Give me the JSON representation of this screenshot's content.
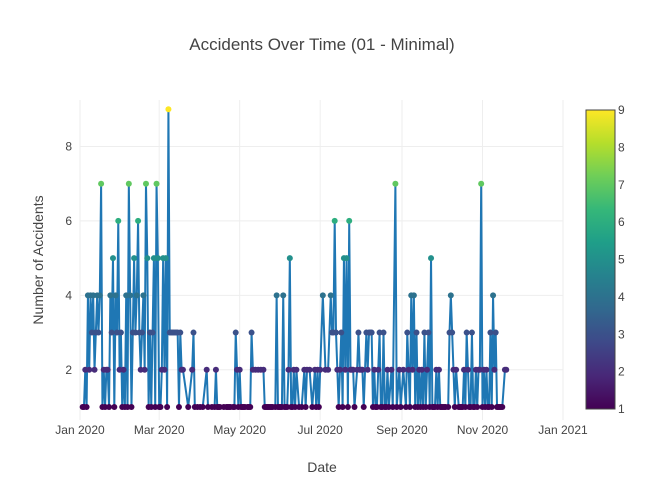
{
  "chart_data": {
    "type": "line",
    "mode": "lines+markers",
    "title": "Accidents Over Time (01 - Minimal)",
    "xlabel": "Date",
    "ylabel": "Number of Accidents",
    "x_start": "2020-01-01",
    "x_end": "2021-01-01",
    "xlim": [
      0,
      366
    ],
    "ylim": [
      0.65,
      9.25
    ],
    "x_ticks": [
      {
        "day": 0,
        "label": "Jan 2020"
      },
      {
        "day": 60,
        "label": "Mar 2020"
      },
      {
        "day": 121,
        "label": "May 2020"
      },
      {
        "day": 182,
        "label": "Jul 2020"
      },
      {
        "day": 244,
        "label": "Sep 2020"
      },
      {
        "day": 305,
        "label": "Nov 2020"
      },
      {
        "day": 366,
        "label": "Jan 2021"
      }
    ],
    "y_ticks": [
      2,
      4,
      6,
      8
    ],
    "grid": true,
    "line_color": "#1f77b4",
    "colorscale": "Viridis",
    "colorbar": {
      "min": 1,
      "max": 9,
      "ticks": [
        1,
        2,
        3,
        4,
        5,
        6,
        7,
        8,
        9
      ]
    },
    "series": [
      {
        "name": "Accidents",
        "points": [
          [
            2,
            1
          ],
          [
            3,
            1
          ],
          [
            4,
            2
          ],
          [
            5,
            1
          ],
          [
            6,
            4
          ],
          [
            7,
            2
          ],
          [
            8,
            4
          ],
          [
            9,
            3
          ],
          [
            10,
            4
          ],
          [
            11,
            2
          ],
          [
            12,
            3
          ],
          [
            13,
            4
          ],
          [
            14,
            3
          ],
          [
            15,
            4
          ],
          [
            16,
            7
          ],
          [
            17,
            1
          ],
          [
            18,
            2
          ],
          [
            19,
            1
          ],
          [
            20,
            2
          ],
          [
            21,
            2
          ],
          [
            22,
            1
          ],
          [
            23,
            4
          ],
          [
            24,
            3
          ],
          [
            25,
            5
          ],
          [
            26,
            1
          ],
          [
            27,
            4
          ],
          [
            28,
            3
          ],
          [
            29,
            6
          ],
          [
            30,
            2
          ],
          [
            31,
            3
          ],
          [
            32,
            1
          ],
          [
            33,
            2
          ],
          [
            34,
            1
          ],
          [
            35,
            4
          ],
          [
            36,
            1
          ],
          [
            37,
            7
          ],
          [
            38,
            4
          ],
          [
            39,
            1
          ],
          [
            40,
            3
          ],
          [
            41,
            5
          ],
          [
            42,
            3
          ],
          [
            43,
            4
          ],
          [
            44,
            6
          ],
          [
            45,
            3
          ],
          [
            46,
            2
          ],
          [
            47,
            3
          ],
          [
            48,
            4
          ],
          [
            49,
            2
          ],
          [
            50,
            7
          ],
          [
            51,
            5
          ],
          [
            52,
            1
          ],
          [
            53,
            3
          ],
          [
            54,
            1
          ],
          [
            55,
            3
          ],
          [
            56,
            5
          ],
          [
            57,
            1
          ],
          [
            58,
            7
          ],
          [
            59,
            5
          ],
          [
            60,
            1
          ],
          [
            61,
            1
          ],
          [
            62,
            2
          ],
          [
            63,
            5
          ],
          [
            64,
            2
          ],
          [
            65,
            5
          ],
          [
            66,
            1
          ],
          [
            67,
            9
          ],
          [
            68,
            3
          ],
          [
            69,
            3
          ],
          [
            70,
            3
          ],
          [
            71,
            3
          ],
          [
            72,
            3
          ],
          [
            73,
            3
          ],
          [
            74,
            3
          ],
          [
            75,
            1
          ],
          [
            76,
            3
          ],
          [
            77,
            2
          ],
          [
            78,
            2
          ],
          [
            82,
            1
          ],
          [
            85,
            2
          ],
          [
            86,
            3
          ],
          [
            87,
            1
          ],
          [
            89,
            1
          ],
          [
            91,
            1
          ],
          [
            93,
            1
          ],
          [
            96,
            2
          ],
          [
            97,
            1
          ],
          [
            100,
            1
          ],
          [
            102,
            1
          ],
          [
            103,
            2
          ],
          [
            104,
            1
          ],
          [
            105,
            1
          ],
          [
            106,
            1
          ],
          [
            109,
            1
          ],
          [
            111,
            1
          ],
          [
            112,
            1
          ],
          [
            113,
            1
          ],
          [
            114,
            1
          ],
          [
            116,
            1
          ],
          [
            117,
            1
          ],
          [
            118,
            3
          ],
          [
            119,
            2
          ],
          [
            120,
            1
          ],
          [
            121,
            2
          ],
          [
            122,
            1
          ],
          [
            123,
            1
          ],
          [
            124,
            1
          ],
          [
            125,
            1
          ],
          [
            127,
            1
          ],
          [
            128,
            1
          ],
          [
            129,
            1
          ],
          [
            130,
            3
          ],
          [
            131,
            2
          ],
          [
            133,
            2
          ],
          [
            135,
            2
          ],
          [
            137,
            2
          ],
          [
            139,
            2
          ],
          [
            140,
            1
          ],
          [
            141,
            1
          ],
          [
            142,
            1
          ],
          [
            143,
            1
          ],
          [
            144,
            1
          ],
          [
            145,
            1
          ],
          [
            146,
            1
          ],
          [
            148,
            1
          ],
          [
            149,
            4
          ],
          [
            150,
            1
          ],
          [
            151,
            1
          ],
          [
            152,
            1
          ],
          [
            153,
            1
          ],
          [
            154,
            4
          ],
          [
            155,
            1
          ],
          [
            156,
            1
          ],
          [
            157,
            1
          ],
          [
            158,
            2
          ],
          [
            159,
            5
          ],
          [
            160,
            1
          ],
          [
            161,
            1
          ],
          [
            162,
            2
          ],
          [
            163,
            1
          ],
          [
            164,
            2
          ],
          [
            166,
            1
          ],
          [
            168,
            1
          ],
          [
            170,
            2
          ],
          [
            171,
            1
          ],
          [
            172,
            2
          ],
          [
            174,
            2
          ],
          [
            176,
            1
          ],
          [
            178,
            2
          ],
          [
            179,
            1
          ],
          [
            180,
            2
          ],
          [
            181,
            1
          ],
          [
            182,
            2
          ],
          [
            184,
            4
          ],
          [
            186,
            2
          ],
          [
            188,
            2
          ],
          [
            190,
            4
          ],
          [
            191,
            3
          ],
          [
            192,
            3
          ],
          [
            193,
            6
          ],
          [
            194,
            3
          ],
          [
            195,
            2
          ],
          [
            196,
            1
          ],
          [
            197,
            2
          ],
          [
            198,
            3
          ],
          [
            199,
            1
          ],
          [
            200,
            5
          ],
          [
            201,
            2
          ],
          [
            202,
            5
          ],
          [
            203,
            1
          ],
          [
            204,
            6
          ],
          [
            205,
            2
          ],
          [
            206,
            2
          ],
          [
            207,
            2
          ],
          [
            208,
            1
          ],
          [
            210,
            2
          ],
          [
            211,
            3
          ],
          [
            212,
            2
          ],
          [
            213,
            2
          ],
          [
            214,
            2
          ],
          [
            215,
            1
          ],
          [
            217,
            3
          ],
          [
            218,
            2
          ],
          [
            219,
            3
          ],
          [
            220,
            3
          ],
          [
            221,
            3
          ],
          [
            222,
            1
          ],
          [
            223,
            2
          ],
          [
            224,
            1
          ],
          [
            225,
            1
          ],
          [
            226,
            2
          ],
          [
            227,
            3
          ],
          [
            228,
            1
          ],
          [
            229,
            1
          ],
          [
            230,
            3
          ],
          [
            231,
            1
          ],
          [
            232,
            1
          ],
          [
            233,
            2
          ],
          [
            234,
            1
          ],
          [
            236,
            2
          ],
          [
            237,
            1
          ],
          [
            239,
            7
          ],
          [
            240,
            1
          ],
          [
            242,
            2
          ],
          [
            243,
            1
          ],
          [
            245,
            2
          ],
          [
            247,
            1
          ],
          [
            248,
            3
          ],
          [
            249,
            2
          ],
          [
            250,
            1
          ],
          [
            251,
            4
          ],
          [
            252,
            2
          ],
          [
            253,
            4
          ],
          [
            254,
            1
          ],
          [
            255,
            3
          ],
          [
            256,
            1
          ],
          [
            257,
            2
          ],
          [
            258,
            1
          ],
          [
            259,
            2
          ],
          [
            260,
            1
          ],
          [
            261,
            3
          ],
          [
            262,
            1
          ],
          [
            263,
            2
          ],
          [
            264,
            3
          ],
          [
            265,
            1
          ],
          [
            266,
            5
          ],
          [
            267,
            1
          ],
          [
            268,
            1
          ],
          [
            269,
            1
          ],
          [
            270,
            2
          ],
          [
            271,
            1
          ],
          [
            272,
            2
          ],
          [
            273,
            1
          ],
          [
            274,
            1
          ],
          [
            275,
            1
          ],
          [
            276,
            1
          ],
          [
            277,
            1
          ],
          [
            279,
            1
          ],
          [
            280,
            3
          ],
          [
            281,
            4
          ],
          [
            282,
            3
          ],
          [
            283,
            2
          ],
          [
            284,
            1
          ],
          [
            285,
            2
          ],
          [
            287,
            1
          ],
          [
            288,
            1
          ],
          [
            289,
            1
          ],
          [
            290,
            1
          ],
          [
            291,
            2
          ],
          [
            292,
            1
          ],
          [
            293,
            3
          ],
          [
            294,
            2
          ],
          [
            295,
            1
          ],
          [
            296,
            1
          ],
          [
            297,
            3
          ],
          [
            298,
            1
          ],
          [
            299,
            1
          ],
          [
            300,
            2
          ],
          [
            301,
            1
          ],
          [
            302,
            2
          ],
          [
            303,
            2
          ],
          [
            304,
            7
          ],
          [
            305,
            1
          ],
          [
            306,
            2
          ],
          [
            307,
            1
          ],
          [
            308,
            2
          ],
          [
            309,
            1
          ],
          [
            310,
            1
          ],
          [
            311,
            3
          ],
          [
            312,
            1
          ],
          [
            313,
            4
          ],
          [
            314,
            2
          ],
          [
            315,
            3
          ],
          [
            316,
            1
          ],
          [
            317,
            1
          ],
          [
            318,
            1
          ],
          [
            319,
            1
          ],
          [
            320,
            1
          ],
          [
            322,
            2
          ],
          [
            323,
            2
          ]
        ]
      }
    ]
  }
}
